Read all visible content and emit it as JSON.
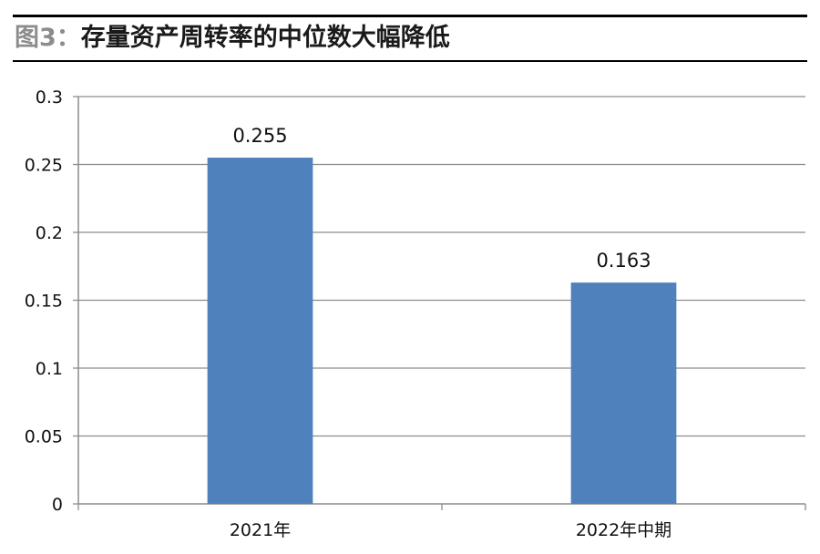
{
  "figure": {
    "label": "图3：",
    "title": "存量资产周转率的中位数大幅降低"
  },
  "chart_data": {
    "type": "bar",
    "categories": [
      "2021年",
      "2022年中期"
    ],
    "values": [
      0.255,
      0.163
    ],
    "data_labels": [
      "0.255",
      "0.163"
    ],
    "ylim": [
      0,
      0.3
    ],
    "yticks": [
      0,
      0.05,
      0.1,
      0.15,
      0.2,
      0.25,
      0.3
    ],
    "ytick_labels": [
      "0",
      "0.05",
      "0.1",
      "0.15",
      "0.2",
      "0.25",
      "0.3"
    ],
    "grid": true,
    "legend": "none",
    "bar_color": "#4f81bd",
    "grid_color": "#8c8c8c"
  }
}
